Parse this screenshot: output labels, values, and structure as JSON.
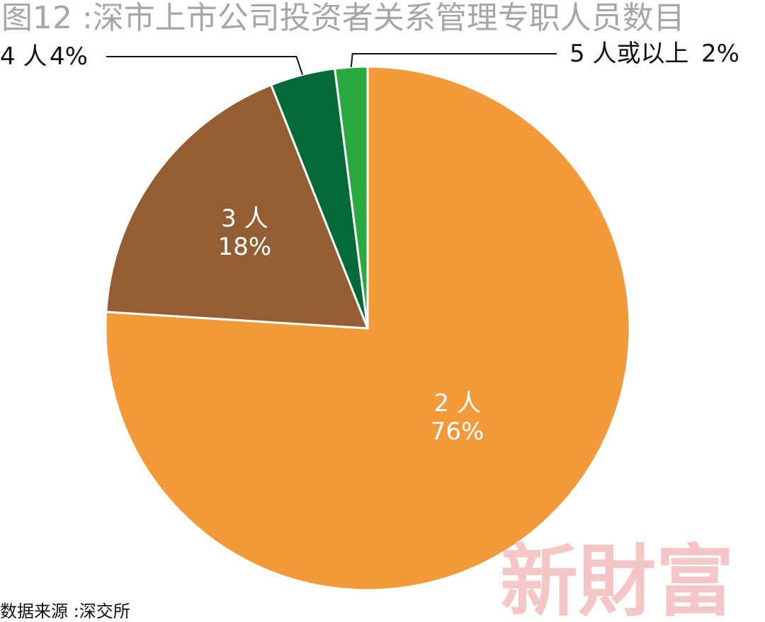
{
  "chart_data": {
    "type": "pie",
    "title": "图12 :深市上市公司投资者关系管理专职人员数目",
    "slices": [
      {
        "label": "2 人",
        "value": 76,
        "value_label": "76%",
        "color": "#F29A3A",
        "label_position": "inside"
      },
      {
        "label": "3 人",
        "value": 18,
        "value_label": "18%",
        "color": "#935E33",
        "label_position": "inside"
      },
      {
        "label": "4 人",
        "value": 4,
        "value_label": "4%",
        "color": "#036937",
        "label_position": "outside-left"
      },
      {
        "label": "5 人或以上",
        "value": 2,
        "value_label": "2%",
        "color": "#2BA941",
        "label_position": "outside-right"
      }
    ],
    "start_angle": "12 o'clock",
    "direction": "clockwise",
    "grid": false,
    "legend": "none"
  },
  "source": "数据来源 :深交所",
  "watermark": "新財富"
}
